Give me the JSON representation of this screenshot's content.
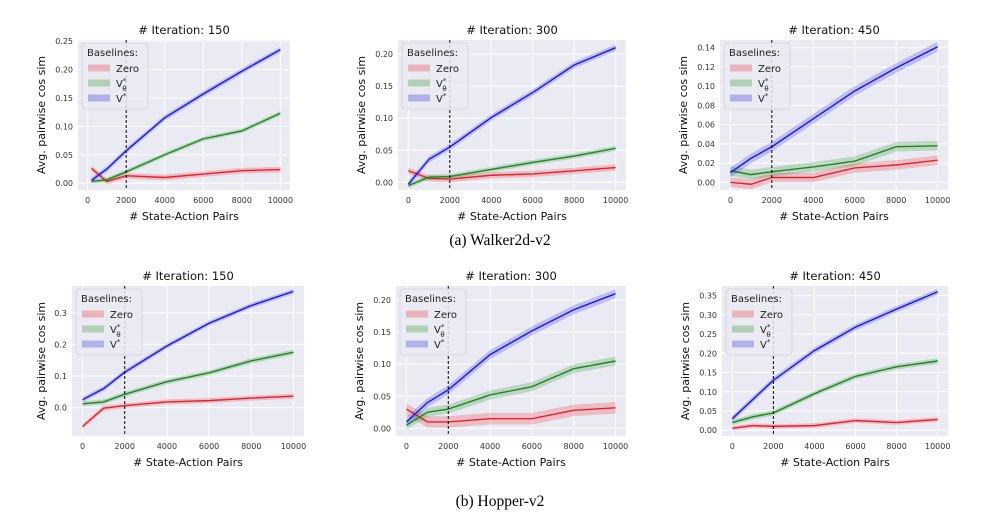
{
  "figure": {
    "captions": [
      "(a) Walker2d-v2",
      "(b) Hopper-v2"
    ],
    "xlabel": "# State-Action Pairs",
    "ylabel": "Avg. pairwise cos sim",
    "legend_title": "Baselines:",
    "legend_labels": [
      "Zero",
      "V",
      "V"
    ],
    "legend_sub": "θ",
    "legend_sup": "*",
    "vline_x": 2000
  },
  "chart_data": [
    {
      "type": "line",
      "group": "Walker2d-v2",
      "title": "# Iteration: 150",
      "xlabel": "# State-Action Pairs",
      "ylabel": "Avg. pairwise cos sim",
      "xlim": [
        -500,
        10500
      ],
      "ylim": [
        -0.012,
        0.252
      ],
      "xticks": [
        0,
        2000,
        4000,
        6000,
        8000,
        10000
      ],
      "yticks": [
        0.0,
        0.05,
        0.1,
        0.15,
        0.2,
        0.25
      ],
      "ytick_labels": [
        "0.00",
        "0.05",
        "0.10",
        "0.15",
        "0.20",
        "0.25"
      ],
      "grid": true,
      "legend": "top-left",
      "vline_x": 2000,
      "x": [
        200,
        1000,
        2000,
        4000,
        6000,
        8000,
        10000
      ],
      "series": [
        {
          "name": "Zero",
          "color": "#e8212b",
          "values": [
            0.026,
            0.003,
            0.013,
            0.01,
            0.016,
            0.022,
            0.024
          ],
          "band": 0.005
        },
        {
          "name": "V_θ^*",
          "color": "#1a8a1a",
          "values": [
            0.003,
            0.006,
            0.02,
            0.05,
            0.078,
            0.092,
            0.123
          ],
          "band": 0.004
        },
        {
          "name": "V^*",
          "color": "#1a1adc",
          "values": [
            0.005,
            0.025,
            0.057,
            0.115,
            0.157,
            0.197,
            0.235
          ],
          "band": 0.005
        }
      ]
    },
    {
      "type": "line",
      "group": "Walker2d-v2",
      "title": "# Iteration: 300",
      "xlabel": "# State-Action Pairs",
      "ylabel": "Avg. pairwise cos sim",
      "xlim": [
        -500,
        10500
      ],
      "ylim": [
        -0.012,
        0.222
      ],
      "xticks": [
        0,
        2000,
        4000,
        6000,
        8000,
        10000
      ],
      "yticks": [
        0.0,
        0.05,
        0.1,
        0.15,
        0.2
      ],
      "ytick_labels": [
        "0.00",
        "0.05",
        "0.10",
        "0.15",
        "0.20"
      ],
      "grid": true,
      "legend": "top-left",
      "vline_x": 2000,
      "x": [
        0,
        1000,
        2000,
        4000,
        6000,
        8000,
        10000
      ],
      "series": [
        {
          "name": "Zero",
          "color": "#e8212b",
          "values": [
            0.018,
            0.006,
            0.005,
            0.011,
            0.013,
            0.018,
            0.023
          ],
          "band": 0.005
        },
        {
          "name": "V_θ^*",
          "color": "#1a8a1a",
          "values": [
            -0.005,
            0.008,
            0.009,
            0.02,
            0.031,
            0.041,
            0.053
          ],
          "band": 0.004
        },
        {
          "name": "V^*",
          "color": "#1a1adc",
          "values": [
            -0.003,
            0.036,
            0.055,
            0.101,
            0.14,
            0.183,
            0.21
          ],
          "band": 0.005
        }
      ]
    },
    {
      "type": "line",
      "group": "Walker2d-v2",
      "title": "# Iteration: 450",
      "xlabel": "# State-Action Pairs",
      "ylabel": "Avg. pairwise cos sim",
      "xlim": [
        -500,
        10500
      ],
      "ylim": [
        -0.008,
        0.148
      ],
      "xticks": [
        0,
        2000,
        4000,
        6000,
        8000,
        10000
      ],
      "yticks": [
        0.0,
        0.02,
        0.04,
        0.06,
        0.08,
        0.1,
        0.12,
        0.14
      ],
      "ytick_labels": [
        "0.00",
        "0.02",
        "0.04",
        "0.06",
        "0.08",
        "0.10",
        "0.12",
        "0.14"
      ],
      "grid": true,
      "legend": "top-left",
      "vline_x": 2000,
      "x": [
        0,
        1000,
        2000,
        4000,
        6000,
        8000,
        10000
      ],
      "series": [
        {
          "name": "Zero",
          "color": "#e8212b",
          "values": [
            0.0,
            -0.002,
            0.005,
            0.005,
            0.015,
            0.018,
            0.023
          ],
          "band": 0.005
        },
        {
          "name": "V_θ^*",
          "color": "#1a8a1a",
          "values": [
            0.012,
            0.008,
            0.011,
            0.016,
            0.022,
            0.037,
            0.038
          ],
          "band": 0.005
        },
        {
          "name": "V^*",
          "color": "#1a1adc",
          "values": [
            0.01,
            0.025,
            0.037,
            0.066,
            0.095,
            0.119,
            0.141
          ],
          "band": 0.005
        }
      ]
    },
    {
      "type": "line",
      "group": "Hopper-v2",
      "title": "# Iteration: 150",
      "xlabel": "# State-Action Pairs",
      "ylabel": "Avg. pairwise cos sim",
      "xlim": [
        -500,
        10500
      ],
      "ylim": [
        -0.09,
        0.385
      ],
      "xticks": [
        0,
        2000,
        4000,
        6000,
        8000,
        10000
      ],
      "yticks": [
        0.0,
        0.1,
        0.2,
        0.3
      ],
      "ytick_labels": [
        "0.0",
        "0.1",
        "0.2",
        "0.3"
      ],
      "grid": true,
      "legend": "top-left",
      "vline_x": 2000,
      "x": [
        0,
        1000,
        2000,
        4000,
        6000,
        8000,
        10000
      ],
      "series": [
        {
          "name": "Zero",
          "color": "#e8212b",
          "values": [
            -0.06,
            -0.002,
            0.006,
            0.018,
            0.022,
            0.03,
            0.036
          ],
          "band": 0.008
        },
        {
          "name": "V_θ^*",
          "color": "#1a8a1a",
          "values": [
            0.012,
            0.018,
            0.042,
            0.082,
            0.11,
            0.148,
            0.175
          ],
          "band": 0.008
        },
        {
          "name": "V^*",
          "color": "#1a1adc",
          "values": [
            0.025,
            0.06,
            0.112,
            0.195,
            0.267,
            0.323,
            0.368
          ],
          "band": 0.008
        }
      ]
    },
    {
      "type": "line",
      "group": "Hopper-v2",
      "title": "# Iteration: 300",
      "xlabel": "# State-Action Pairs",
      "ylabel": "Avg. pairwise cos sim",
      "xlim": [
        -500,
        10500
      ],
      "ylim": [
        -0.012,
        0.222
      ],
      "xticks": [
        0,
        2000,
        4000,
        6000,
        8000,
        10000
      ],
      "yticks": [
        0.0,
        0.05,
        0.1,
        0.15,
        0.2
      ],
      "ytick_labels": [
        "0.00",
        "0.05",
        "0.10",
        "0.15",
        "0.20"
      ],
      "grid": true,
      "legend": "top-left",
      "vline_x": 2000,
      "x": [
        0,
        1000,
        2000,
        4000,
        6000,
        8000,
        10000
      ],
      "series": [
        {
          "name": "Zero",
          "color": "#e8212b",
          "values": [
            0.03,
            0.01,
            0.01,
            0.015,
            0.015,
            0.028,
            0.032
          ],
          "band": 0.009
        },
        {
          "name": "V_θ^*",
          "color": "#1a8a1a",
          "values": [
            0.005,
            0.025,
            0.03,
            0.052,
            0.065,
            0.093,
            0.105
          ],
          "band": 0.007
        },
        {
          "name": "V^*",
          "color": "#1a1adc",
          "values": [
            0.01,
            0.04,
            0.06,
            0.115,
            0.152,
            0.185,
            0.21
          ],
          "band": 0.007
        }
      ]
    },
    {
      "type": "line",
      "group": "Hopper-v2",
      "title": "# Iteration: 450",
      "xlabel": "# State-Action Pairs",
      "ylabel": "Avg. pairwise cos sim",
      "xlim": [
        -500,
        10500
      ],
      "ylim": [
        -0.015,
        0.375
      ],
      "xticks": [
        0,
        2000,
        4000,
        6000,
        8000,
        10000
      ],
      "yticks": [
        0.0,
        0.05,
        0.1,
        0.15,
        0.2,
        0.25,
        0.3,
        0.35
      ],
      "ytick_labels": [
        "0.00",
        "0.05",
        "0.10",
        "0.15",
        "0.20",
        "0.25",
        "0.30",
        "0.35"
      ],
      "grid": true,
      "legend": "top-left",
      "vline_x": 2000,
      "x": [
        0,
        1000,
        2000,
        4000,
        6000,
        8000,
        10000
      ],
      "series": [
        {
          "name": "Zero",
          "color": "#e8212b",
          "values": [
            0.005,
            0.012,
            0.01,
            0.012,
            0.025,
            0.02,
            0.028
          ],
          "band": 0.006
        },
        {
          "name": "V_θ^*",
          "color": "#1a8a1a",
          "values": [
            0.02,
            0.035,
            0.045,
            0.095,
            0.14,
            0.165,
            0.18
          ],
          "band": 0.007
        },
        {
          "name": "V^*",
          "color": "#1a1adc",
          "values": [
            0.03,
            0.08,
            0.13,
            0.207,
            0.268,
            0.315,
            0.36
          ],
          "band": 0.008
        }
      ]
    }
  ]
}
